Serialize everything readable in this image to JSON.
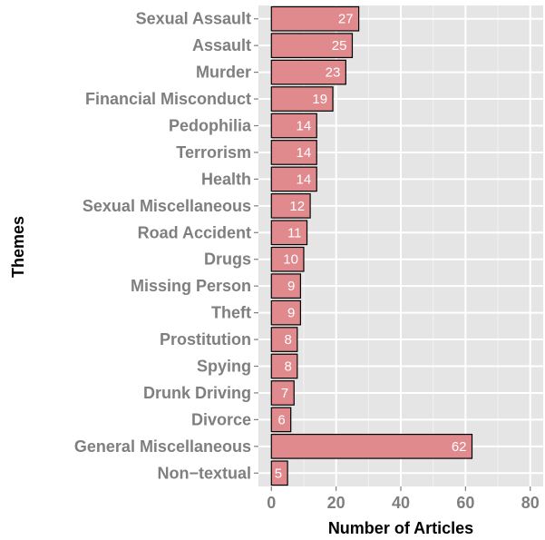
{
  "chart_data": {
    "type": "bar",
    "orientation": "horizontal",
    "categories": [
      "Sexual Assault",
      "Assault",
      "Murder",
      "Financial Misconduct",
      "Pedophilia",
      "Terrorism",
      "Health",
      "Sexual Miscellaneous",
      "Road Accident",
      "Drugs",
      "Missing Person",
      "Theft",
      "Prostitution",
      "Spying",
      "Drunk Driving",
      "Divorce",
      "General Miscellaneous",
      "Non−textual"
    ],
    "values": [
      27,
      25,
      23,
      19,
      14,
      14,
      14,
      12,
      11,
      10,
      9,
      9,
      8,
      8,
      7,
      6,
      62,
      5
    ],
    "data_labels": [
      "27",
      "25",
      "23",
      "19",
      "14",
      "14",
      "14",
      "12",
      "11",
      "10",
      "9",
      "9",
      "8",
      "8",
      "7",
      "6",
      "62",
      "5"
    ],
    "xlabel": "Number of Articles",
    "ylabel": "Themes",
    "xlim": [
      -4,
      84
    ],
    "xticks": [
      0,
      20,
      40,
      60,
      80
    ],
    "xtick_labels": [
      "0",
      "20",
      "40",
      "60",
      "80"
    ],
    "grid": true,
    "legend": "none",
    "colors": {
      "bar_fill": "#e08a8d",
      "bar_stroke": "#000000",
      "panel_bg": "#e5e5e5",
      "grid_major": "#ffffff",
      "grid_minor": "#f2f2f2",
      "label_text": "#7f7f7f",
      "bar_label_text": "#ffffff"
    }
  }
}
